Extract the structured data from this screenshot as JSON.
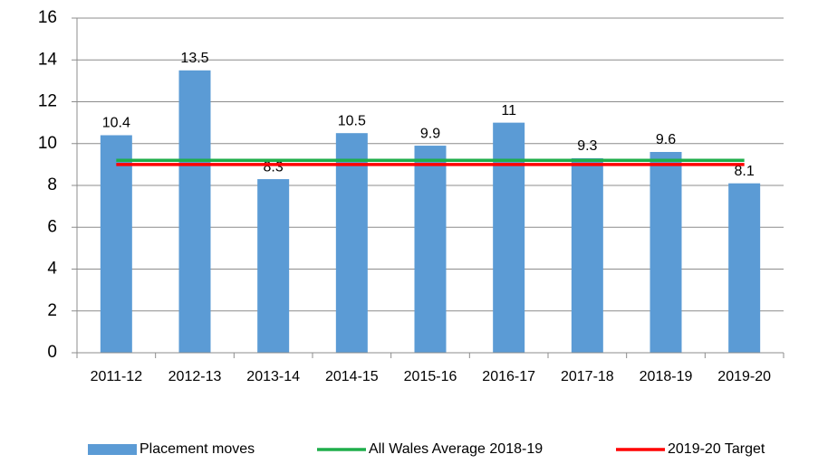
{
  "chart_data": {
    "type": "bar",
    "categories": [
      "2011-12",
      "2012-13",
      "2013-14",
      "2014-15",
      "2015-16",
      "2016-17",
      "2017-18",
      "2018-19",
      "2019-20"
    ],
    "series": [
      {
        "name": "Placement moves",
        "color": "#5b9bd5",
        "type": "bar",
        "values": [
          10.4,
          13.5,
          8.3,
          10.5,
          9.9,
          11,
          9.3,
          9.6,
          8.1
        ]
      },
      {
        "name": "All Wales Average 2018-19",
        "color": "#1fae4b",
        "type": "line",
        "values": [
          9.2,
          9.2,
          9.2,
          9.2,
          9.2,
          9.2,
          9.2,
          9.2,
          9.2
        ]
      },
      {
        "name": "2019-20 Target",
        "color": "#ff0000",
        "type": "line",
        "values": [
          9,
          9,
          9,
          9,
          9,
          9,
          9,
          9,
          9
        ]
      }
    ],
    "ylim": [
      0,
      16
    ],
    "yticks": [
      0,
      2,
      4,
      6,
      8,
      10,
      12,
      14,
      16
    ],
    "grid": true,
    "legend": "bottom"
  }
}
